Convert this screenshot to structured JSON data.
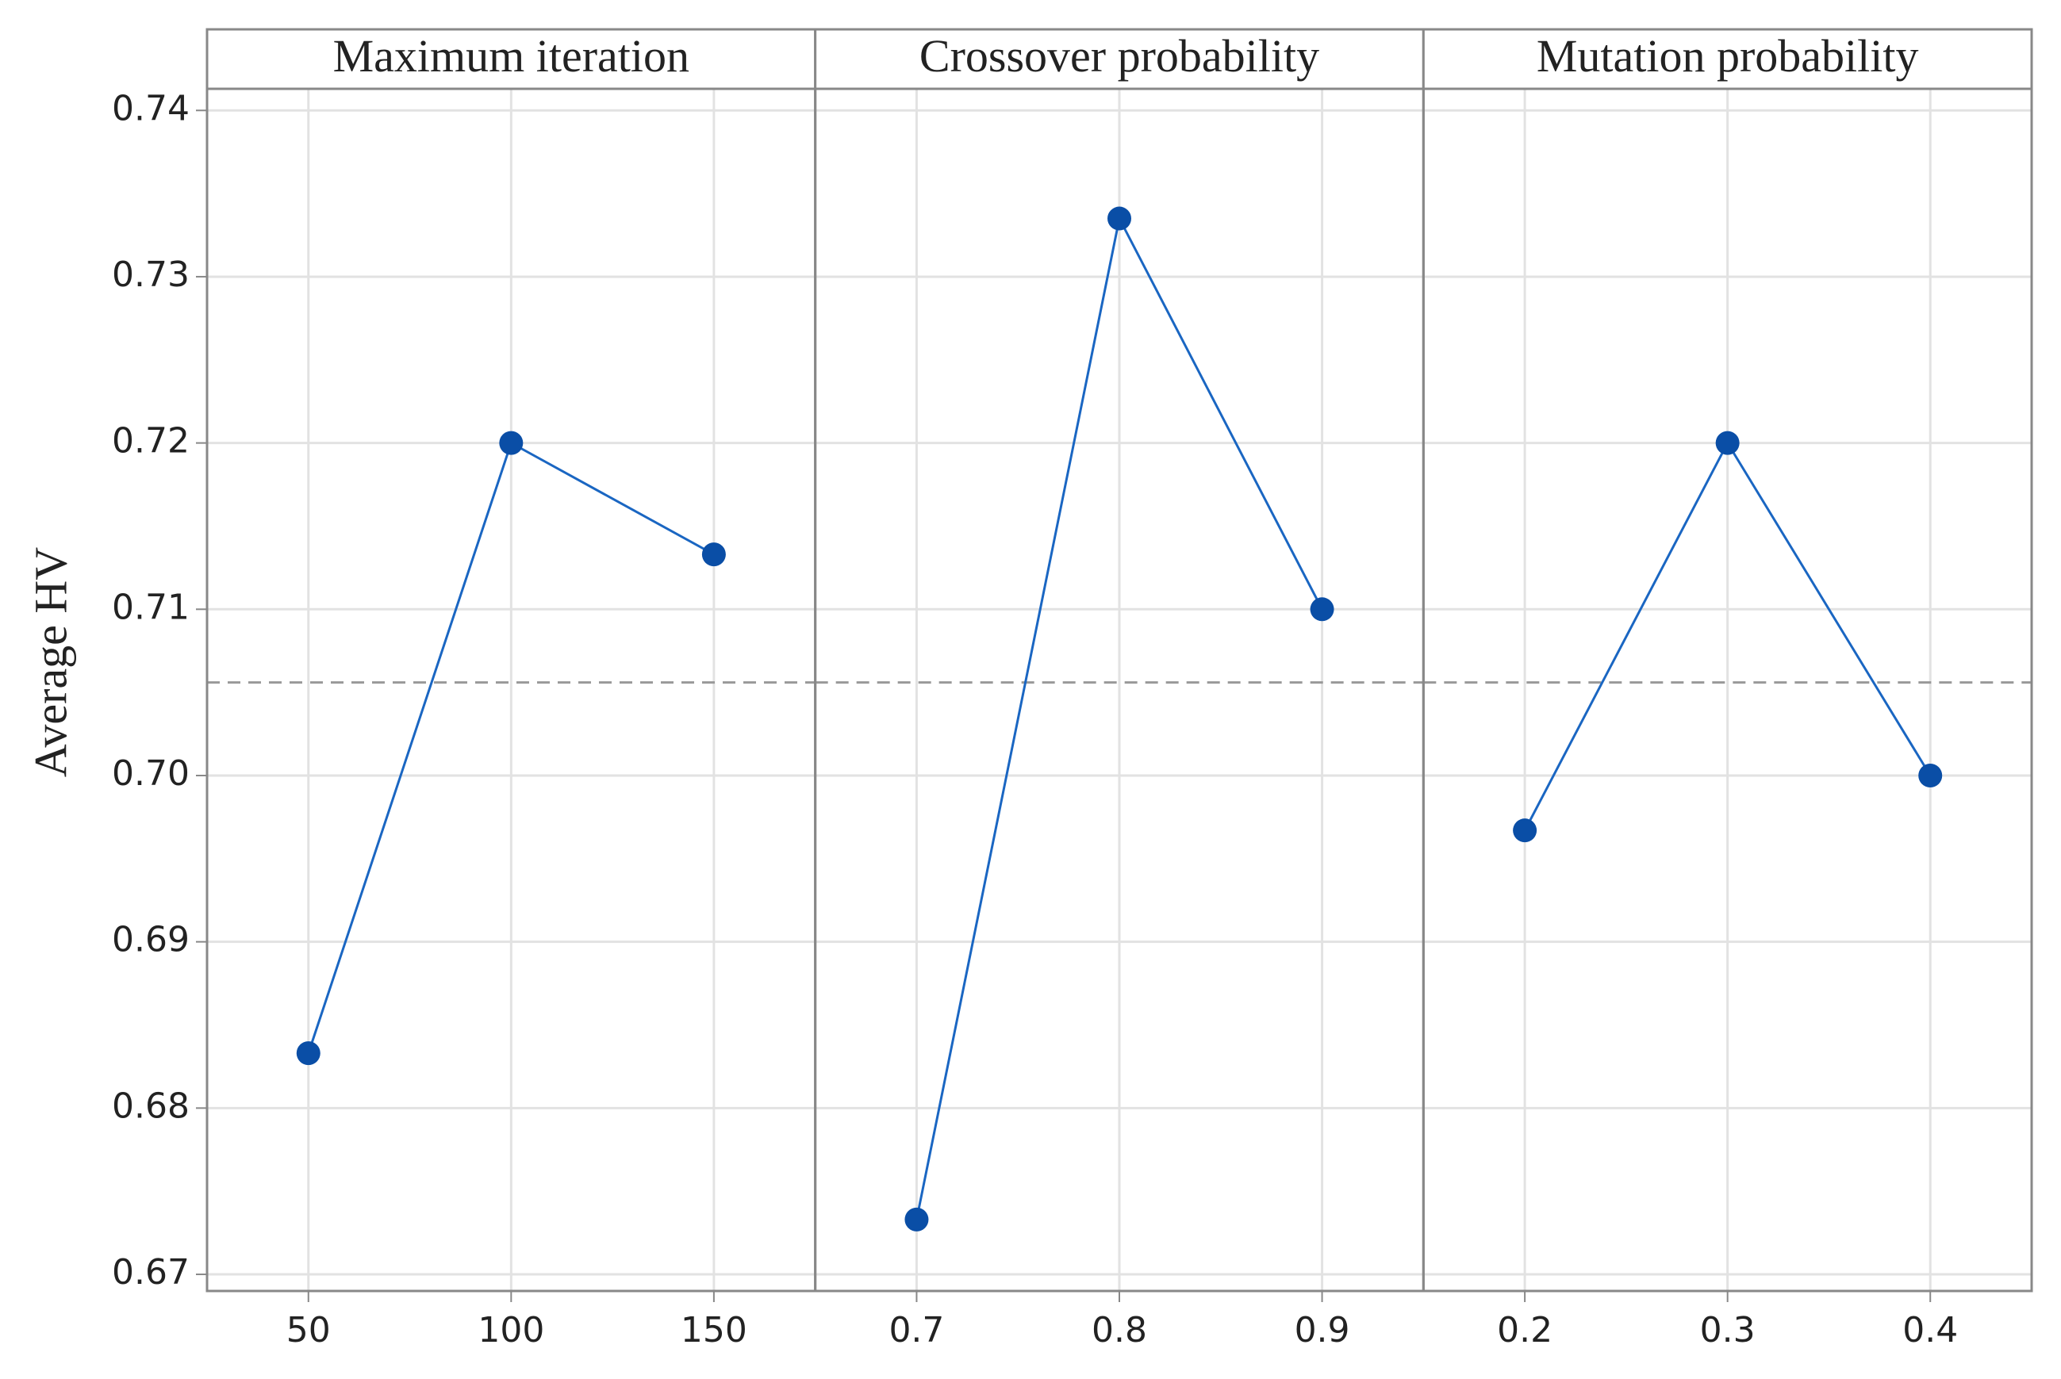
{
  "chart_data": {
    "type": "line",
    "ylabel": "Average HV",
    "ylim": [
      0.669,
      0.7413
    ],
    "yticks": [
      0.67,
      0.68,
      0.69,
      {
        "value": 0.7,
        "label": "0.70"
      },
      0.71,
      0.72,
      0.73,
      0.74
    ],
    "grid": true,
    "hline": 0.7056,
    "color": "#1a66c2",
    "marker_color": "#0a4ea6",
    "panels": [
      {
        "title": "Maximum iteration",
        "categories": [
          "50",
          "100",
          "150"
        ],
        "values": [
          0.6833,
          0.72,
          0.7133
        ]
      },
      {
        "title": "Crossover probability",
        "categories": [
          "0.7",
          "0.8",
          "0.9"
        ],
        "values": [
          0.6733,
          0.7335,
          0.71
        ]
      },
      {
        "title": "Mutation probability",
        "categories": [
          "0.2",
          "0.3",
          "0.4"
        ],
        "values": [
          0.6967,
          0.72,
          0.7
        ]
      }
    ]
  }
}
